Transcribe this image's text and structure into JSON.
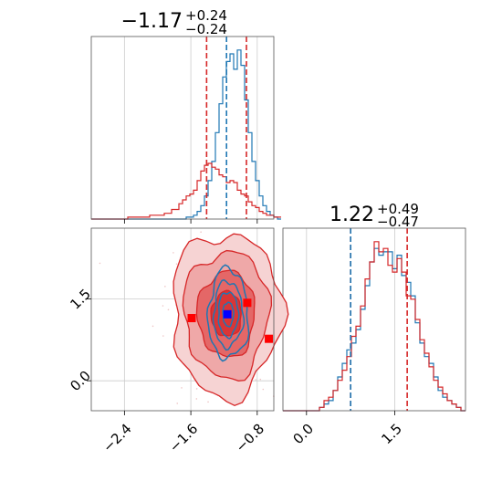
{
  "chart_data": [
    {
      "type": "histogram",
      "title": {
        "main": "−1.17",
        "sup": "+0.24",
        "sub": "−0.24"
      },
      "xlim": [
        -2.8,
        -0.6
      ],
      "grid": true,
      "colors": {
        "a": "#1f77b4",
        "b": "#d62728"
      },
      "quantile_lines": {
        "a": [
          -1.17
        ],
        "b": [
          -1.41,
          -0.93
        ]
      },
      "bin_edges_start": -2.8,
      "bin_width": 0.044,
      "series": [
        {
          "name": "",
          "color": "#1f77b4",
          "values": [
            0,
            0,
            0,
            0,
            0,
            0,
            0,
            0,
            0,
            0,
            0,
            0,
            0,
            0,
            0,
            0,
            0,
            0,
            0,
            0,
            0,
            0,
            0,
            0,
            0,
            0,
            1,
            1,
            2,
            4,
            7,
            12,
            20,
            30,
            45,
            60,
            74,
            82,
            86,
            78,
            88,
            80,
            62,
            45,
            30,
            20,
            12,
            7,
            4,
            2,
            1,
            0
          ]
        },
        {
          "name": "",
          "color": "#d62728",
          "values": [
            0,
            0,
            0,
            0,
            0,
            0,
            0,
            0,
            0,
            0,
            1,
            1,
            1,
            1,
            1,
            1,
            2,
            2,
            2,
            2,
            3,
            3,
            5,
            5,
            8,
            10,
            12,
            13,
            15,
            20,
            25,
            28,
            29,
            27,
            26,
            23,
            22,
            19,
            20,
            19,
            15,
            13,
            12,
            9,
            7,
            6,
            4,
            3,
            2,
            2,
            1,
            1
          ]
        }
      ]
    },
    {
      "type": "histogram",
      "title": {
        "main": "1.22",
        "sup": "+0.49",
        "sub": "−0.47"
      },
      "xlim": [
        -0.4,
        2.7
      ],
      "grid": true,
      "colors": {
        "a": "#1f77b4",
        "b": "#d62728"
      },
      "quantile_lines": {
        "a": [
          0.75
        ],
        "b": [
          0.75,
          1.71
        ]
      },
      "bin_edges_start": -0.4,
      "bin_width": 0.0775,
      "series": [
        {
          "name": "",
          "color": "#1f77b4",
          "values": [
            0,
            0,
            0,
            0,
            0,
            0,
            0,
            0,
            1,
            2,
            3,
            6,
            10,
            14,
            18,
            20,
            24,
            30,
            37,
            44,
            48,
            46,
            47,
            47,
            42,
            46,
            40,
            38,
            34,
            26,
            20,
            16,
            14,
            10,
            6,
            4,
            3,
            2,
            1,
            0
          ]
        },
        {
          "name": "",
          "color": "#d62728",
          "values": [
            0,
            0,
            0,
            0,
            0,
            0,
            0,
            0,
            1,
            3,
            4,
            6,
            9,
            12,
            16,
            22,
            25,
            31,
            39,
            44,
            50,
            47,
            48,
            43,
            41,
            45,
            41,
            34,
            33,
            27,
            21,
            17,
            13,
            9,
            7,
            5,
            3,
            2,
            1,
            0
          ]
        }
      ]
    },
    {
      "type": "contour",
      "xlim": [
        -2.8,
        -0.6
      ],
      "ylim": [
        -0.55,
        2.8
      ],
      "grid": true,
      "x_ticks": [
        "−2.4",
        "−1.6",
        "−0.8"
      ],
      "x_tick_values": [
        -2.4,
        -1.6,
        -0.8
      ],
      "y_ticks": [
        "0.0",
        "1.5"
      ],
      "y_tick_values": [
        0.0,
        1.5
      ],
      "series": [
        {
          "name": "",
          "color": "#1f77b4",
          "center": [
            -1.15,
            1.22
          ],
          "spread": [
            0.16,
            0.55
          ]
        },
        {
          "name": "",
          "color": "#d62728",
          "center": [
            -1.17,
            1.22
          ],
          "spread": [
            0.33,
            0.75
          ]
        }
      ],
      "markers": [
        {
          "color": "#0000ff",
          "x": -1.16,
          "y": 1.22
        },
        {
          "color": "#ff0000",
          "x": -1.59,
          "y": 1.15
        },
        {
          "color": "#ff0000",
          "x": -0.92,
          "y": 1.43
        },
        {
          "color": "#ff0000",
          "x": -0.66,
          "y": 0.77
        }
      ]
    },
    {
      "type": "axis",
      "x_ticks": [
        "0.0",
        "1.5"
      ],
      "x_tick_values": [
        0.0,
        1.5
      ]
    }
  ]
}
